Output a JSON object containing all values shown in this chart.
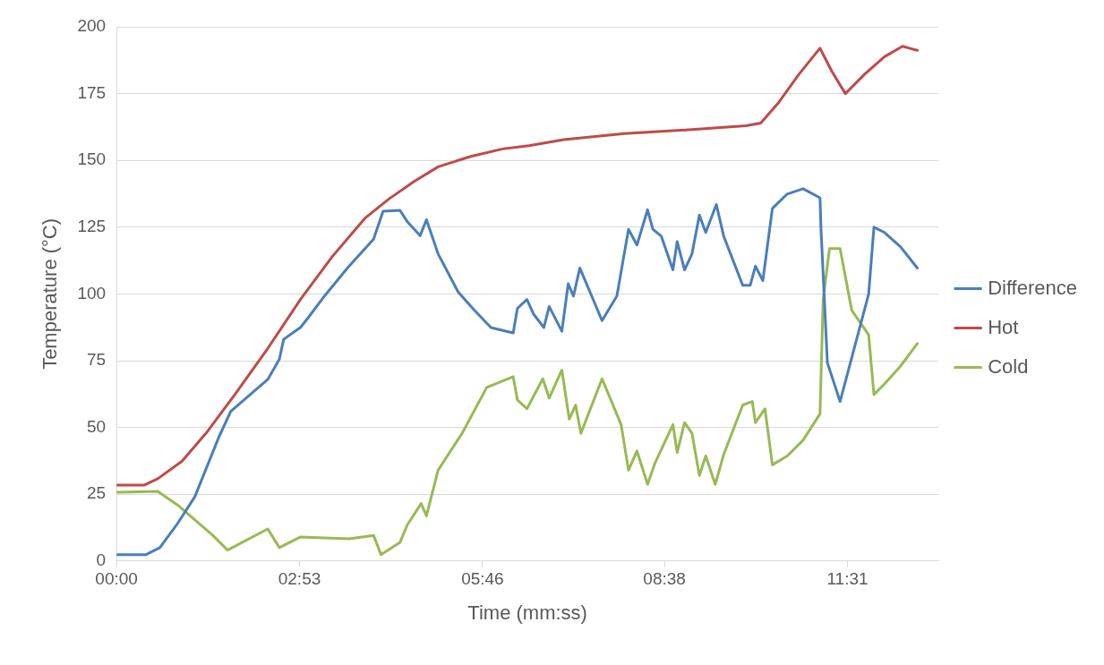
{
  "chart_data": {
    "type": "line",
    "xlabel": "Time (mm:ss)",
    "ylabel": "Temperature (°C)",
    "xlim": [
      0,
      777
    ],
    "xticks": [
      {
        "value": 0,
        "label": "00:00"
      },
      {
        "value": 173,
        "label": "02:53"
      },
      {
        "value": 346,
        "label": "05:46"
      },
      {
        "value": 518,
        "label": "08:38"
      },
      {
        "value": 691,
        "label": "11:31"
      }
    ],
    "ylim": [
      0,
      200
    ],
    "yticks": [
      0,
      25,
      50,
      75,
      100,
      125,
      150,
      175,
      200
    ],
    "grid": "y",
    "legend": "right",
    "marker": "none",
    "line_style": "solid",
    "series": [
      {
        "name": "Difference",
        "color": "#4a7ebb",
        "x": [
          1,
          28,
          41,
          57,
          74,
          91,
          97,
          108,
          143,
          154,
          158,
          174,
          181,
          197,
          219,
          243,
          252,
          268,
          275,
          287,
          293,
          304,
          323,
          338,
          354,
          375,
          379,
          388,
          394,
          404,
          409,
          421,
          427,
          432,
          438,
          459,
          473,
          484,
          492,
          502,
          507,
          515,
          526,
          530,
          537,
          544,
          551,
          557,
          567,
          574,
          592,
          599,
          604,
          611,
          620,
          634,
          649,
          665,
          666,
          672,
          684,
          711,
          716,
          726,
          741,
          757
        ],
        "values": [
          2.4,
          2.4,
          5,
          13.6,
          24,
          40.7,
          46.6,
          56,
          68,
          75.6,
          83,
          87.5,
          91,
          99.4,
          110,
          120.5,
          131,
          131.3,
          127,
          121.8,
          127.8,
          115,
          100.7,
          94,
          87.4,
          85.4,
          94.6,
          97.9,
          92.6,
          87.4,
          95.3,
          86,
          103.8,
          99.2,
          109.7,
          90,
          99.2,
          124.2,
          118.3,
          131.5,
          124.2,
          121.6,
          109,
          119.6,
          109,
          115,
          129.5,
          123,
          133.5,
          121.6,
          103.2,
          103.2,
          110.4,
          105,
          132,
          137.4,
          139.4,
          136,
          124,
          74.2,
          59.7,
          99.9,
          125,
          123,
          117.7,
          109.7
        ]
      },
      {
        "name": "Hot",
        "color": "#be4b48",
        "x": [
          1,
          26,
          39,
          62,
          85,
          112,
          143,
          174,
          204,
          235,
          258,
          281,
          304,
          335,
          365,
          390,
          423,
          480,
          538,
          595,
          609,
          626,
          645,
          665,
          676,
          689,
          707,
          726,
          743,
          757
        ],
        "values": [
          28.4,
          28.4,
          30.8,
          37.4,
          48,
          62.4,
          79.6,
          98,
          114,
          128.4,
          135.7,
          142,
          147.6,
          151.5,
          154.3,
          155.5,
          157.8,
          160,
          161.4,
          163,
          164,
          171.7,
          182.2,
          192,
          183.5,
          175,
          182.2,
          188.8,
          192.7,
          191.2
        ]
      },
      {
        "name": "Cold",
        "color": "#98b954",
        "x": [
          1,
          39,
          58,
          91,
          105,
          143,
          154,
          174,
          220,
          243,
          250,
          268,
          275,
          288,
          293,
          304,
          327,
          350,
          375,
          379,
          388,
          396,
          403,
          409,
          421,
          428,
          434,
          439,
          459,
          477,
          484,
          492,
          502,
          509,
          526,
          530,
          537,
          544,
          551,
          557,
          566,
          574,
          592,
          601,
          604,
          613,
          620,
          634,
          649,
          665,
          668,
          674,
          684,
          695,
          711,
          716,
          726,
          741,
          757
        ],
        "values": [
          25.7,
          26.1,
          20.9,
          9.6,
          4.1,
          12,
          5,
          9,
          8.3,
          9.6,
          2.4,
          7,
          13.6,
          21.5,
          16.9,
          34,
          48,
          65,
          69,
          60.3,
          57,
          63,
          68.2,
          61,
          71.5,
          53.1,
          58.4,
          47.8,
          68.2,
          51.1,
          34,
          41.2,
          28.7,
          36.6,
          51.1,
          40.6,
          51.8,
          47.8,
          32,
          39.3,
          28.7,
          39.9,
          58.4,
          59.7,
          51.8,
          57,
          36,
          39.3,
          45.2,
          55.1,
          97.9,
          117,
          117,
          93.9,
          84.7,
          62.3,
          66.3,
          72.9,
          81.4
        ]
      }
    ]
  }
}
